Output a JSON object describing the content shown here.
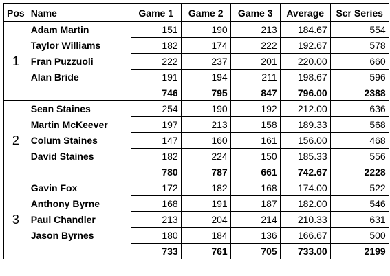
{
  "header": {
    "pos": "Pos",
    "name": "Name",
    "game1": "Game 1",
    "game2": "Game 2",
    "game3": "Game 3",
    "average": "Average",
    "scr_series": "Scr Series"
  },
  "teams": [
    {
      "pos": "1",
      "players": [
        {
          "name": "Adam Martin",
          "g1": "151",
          "g2": "190",
          "g3": "213",
          "avg": "184.67",
          "scr": "554"
        },
        {
          "name": "Taylor Williams",
          "g1": "182",
          "g2": "174",
          "g3": "222",
          "avg": "192.67",
          "scr": "578"
        },
        {
          "name": "Fran Puzzuoli",
          "g1": "222",
          "g2": "237",
          "g3": "201",
          "avg": "220.00",
          "scr": "660"
        },
        {
          "name": "Alan Bride",
          "g1": "191",
          "g2": "194",
          "g3": "211",
          "avg": "198.67",
          "scr": "596"
        }
      ],
      "total": {
        "g1": "746",
        "g2": "795",
        "g3": "847",
        "avg": "796.00",
        "scr": "2388"
      }
    },
    {
      "pos": "2",
      "players": [
        {
          "name": "Sean Staines",
          "g1": "254",
          "g2": "190",
          "g3": "192",
          "avg": "212.00",
          "scr": "636"
        },
        {
          "name": "Martin McKeever",
          "g1": "197",
          "g2": "213",
          "g3": "158",
          "avg": "189.33",
          "scr": "568"
        },
        {
          "name": "Colum Staines",
          "g1": "147",
          "g2": "160",
          "g3": "161",
          "avg": "156.00",
          "scr": "468"
        },
        {
          "name": "David Staines",
          "g1": "182",
          "g2": "224",
          "g3": "150",
          "avg": "185.33",
          "scr": "556"
        }
      ],
      "total": {
        "g1": "780",
        "g2": "787",
        "g3": "661",
        "avg": "742.67",
        "scr": "2228"
      }
    },
    {
      "pos": "3",
      "players": [
        {
          "name": "Gavin Fox",
          "g1": "172",
          "g2": "182",
          "g3": "168",
          "avg": "174.00",
          "scr": "522"
        },
        {
          "name": "Anthony Byrne",
          "g1": "168",
          "g2": "191",
          "g3": "187",
          "avg": "182.00",
          "scr": "546"
        },
        {
          "name": "Paul Chandler",
          "g1": "213",
          "g2": "204",
          "g3": "214",
          "avg": "210.33",
          "scr": "631"
        },
        {
          "name": "Jason Byrnes",
          "g1": "180",
          "g2": "184",
          "g3": "136",
          "avg": "166.67",
          "scr": "500"
        }
      ],
      "total": {
        "g1": "733",
        "g2": "761",
        "g3": "705",
        "avg": "733.00",
        "scr": "2199"
      }
    }
  ]
}
